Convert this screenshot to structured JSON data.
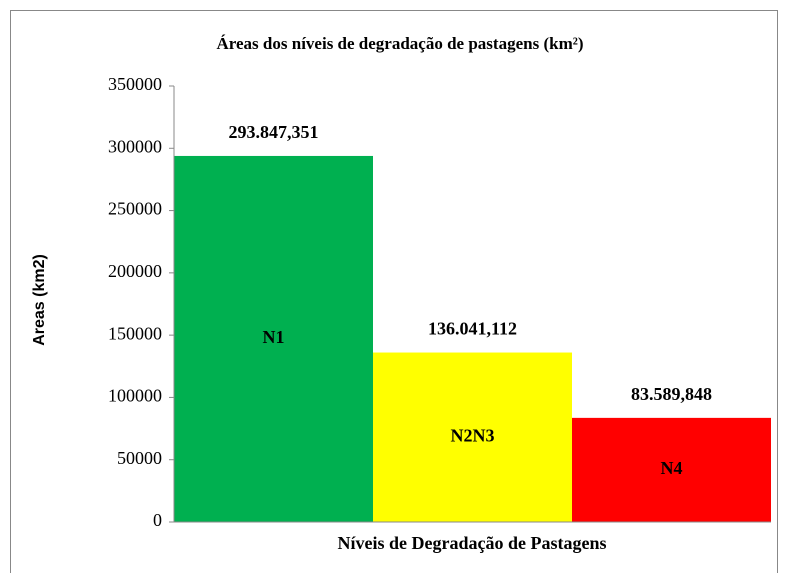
{
  "chart_data": {
    "type": "bar",
    "title": "Áreas dos níveis de degradação de pastagens (km²)",
    "x_label": "Níveis de Degradação de Pastagens",
    "y_label": "Areas (km2)",
    "categories": [
      "N1",
      "N2N3",
      "N4"
    ],
    "values": [
      293847.351,
      136041.112,
      83589.848
    ],
    "value_labels": [
      "293.847,351",
      "136.041,112",
      "83.589,848"
    ],
    "colors": [
      "#00b050",
      "#ffff00",
      "#ff0000"
    ],
    "ylim": [
      0,
      350000
    ],
    "yticks": [
      0,
      50000,
      100000,
      150000,
      200000,
      250000,
      300000,
      350000
    ],
    "grid": false
  }
}
